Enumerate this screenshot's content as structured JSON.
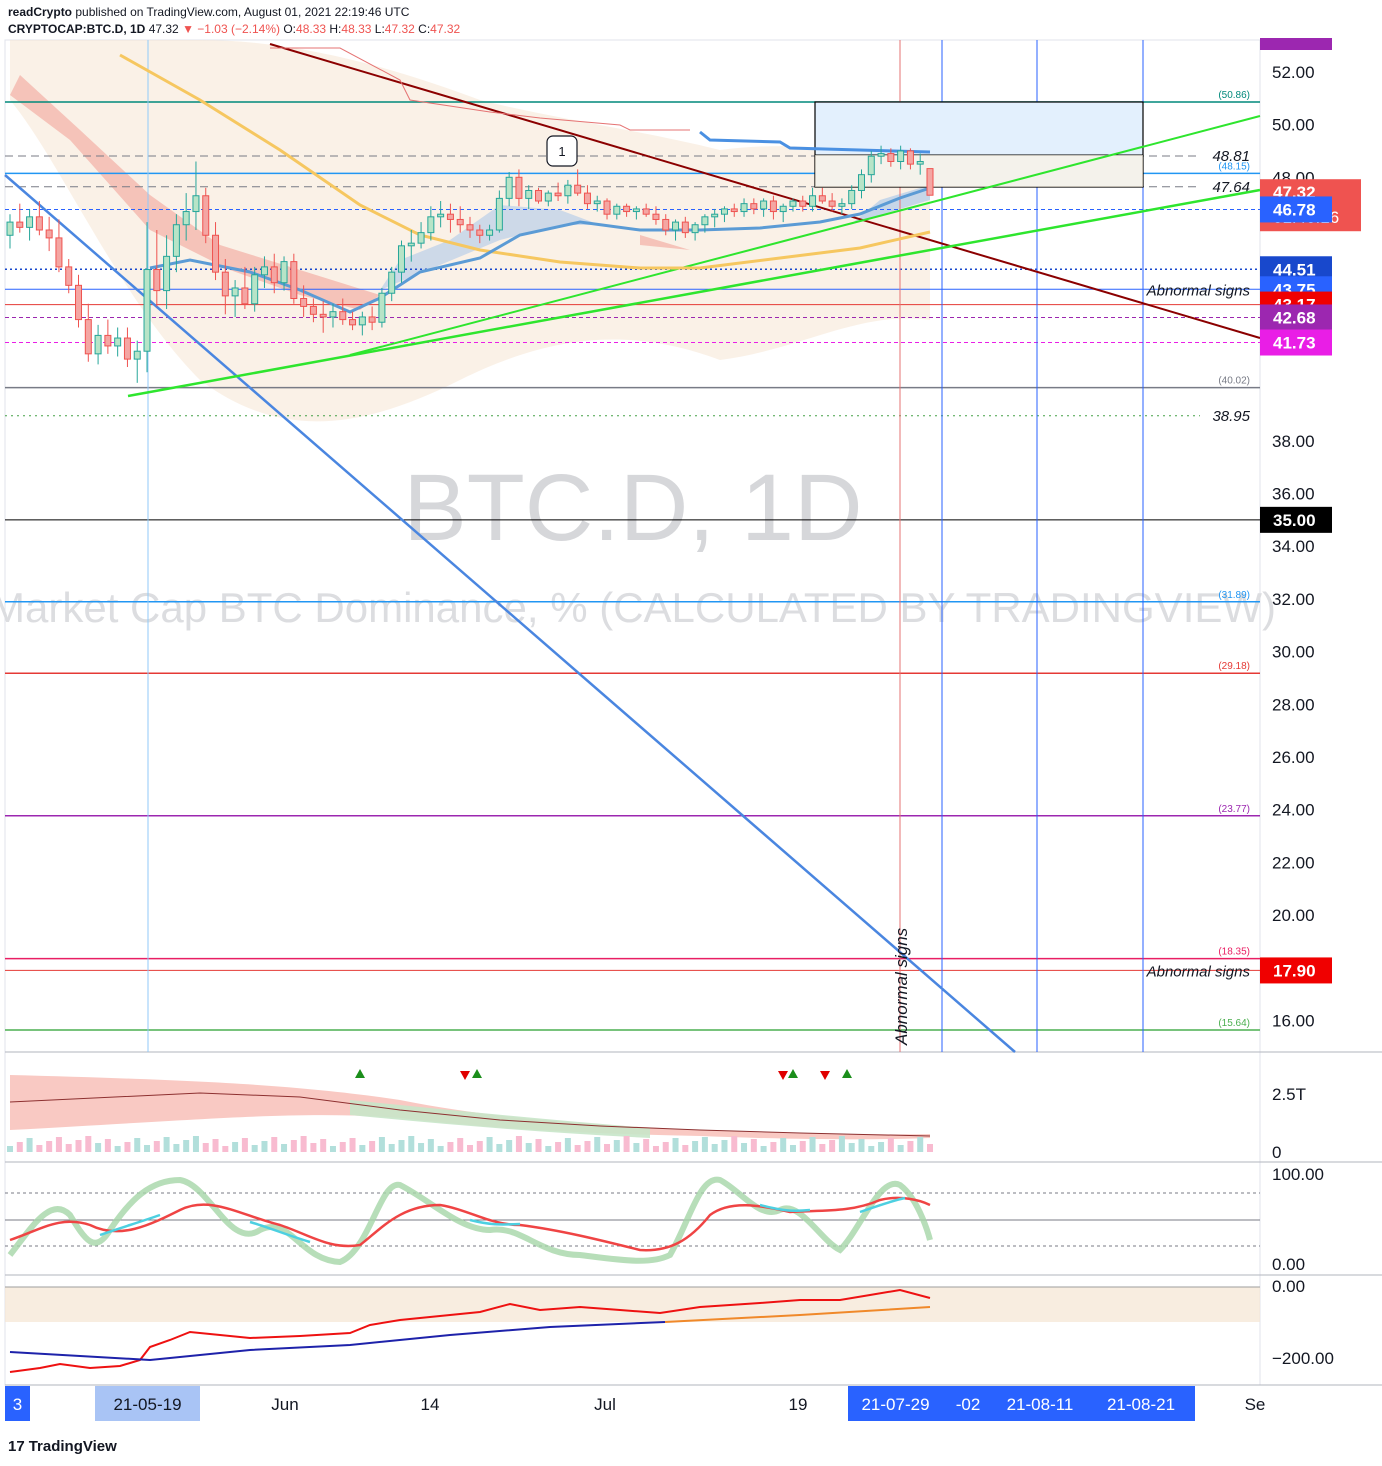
{
  "header": {
    "publisher": "readCrypto",
    "published_text": "published on TradingView.com, August 01, 2021 22:19:46 UTC",
    "symbol": "CRYPTOCAP:BTC.D, 1D",
    "last": "47.32",
    "change": "▼ −1.03 (−2.14%)",
    "o_label": "O:",
    "o": "48.33",
    "h_label": "H:",
    "h": "48.33",
    "l_label": "L:",
    "l": "47.32",
    "c_label": "C:",
    "c": "47.32"
  },
  "watermark": {
    "symbol": "BTC.D, 1D",
    "description": "Market Cap BTC Dominance, % (CALCULATED BY TRADINGVIEW)"
  },
  "chart_data": {
    "type": "candlestick",
    "y_axis": {
      "ticks": [
        "52.00",
        "50.00",
        "48.00",
        "38.00",
        "36.00",
        "34.00",
        "32.00",
        "30.00",
        "28.00",
        "26.00",
        "24.00",
        "22.00",
        "20.00",
        "16.00"
      ],
      "range": [
        15.0,
        53.5
      ]
    },
    "price_badges": [
      {
        "value": "47.32",
        "sub": "01:40:16",
        "color": "#ef5350"
      },
      {
        "value": "46.78",
        "color": "#2962ff"
      },
      {
        "value": "44.51",
        "color": "#1848cc"
      },
      {
        "value": "43.75",
        "color": "#2962ff"
      },
      {
        "value": "43.17",
        "color": "#f00000"
      },
      {
        "value": "42.68",
        "color": "#9c27b0"
      },
      {
        "value": "41.73",
        "color": "#e91ee6"
      },
      {
        "value": "35.00",
        "color": "#000000"
      },
      {
        "value": "17.90",
        "color": "#f00000"
      }
    ],
    "level_labels": [
      {
        "value": 50.86,
        "text": "(50.86)",
        "color": "#00897b"
      },
      {
        "value": 48.15,
        "text": "(48.15)",
        "color": "#2196f3"
      },
      {
        "value": 40.02,
        "text": "(40.02)",
        "color": "#787b86"
      },
      {
        "value": 31.89,
        "text": "(31.89)",
        "color": "#2196f3"
      },
      {
        "value": 29.18,
        "text": "(29.18)",
        "color": "#e53935"
      },
      {
        "value": 23.77,
        "text": "(23.77)",
        "color": "#9c27b0"
      },
      {
        "value": 18.35,
        "text": "(18.35)",
        "color": "#e91e63"
      },
      {
        "value": 15.64,
        "text": "(15.64)",
        "color": "#4caf50"
      }
    ],
    "dashed_labels": [
      {
        "value": 48.81,
        "text": "48.81"
      },
      {
        "value": 47.64,
        "text": "47.64"
      },
      {
        "value": 38.95,
        "text": "38.95"
      }
    ],
    "annotations": [
      {
        "text": "Abnormal signs",
        "value": 43.75
      },
      {
        "text": "Abnormal signs",
        "value": 17.9
      },
      {
        "text": "Abnormal signs",
        "vertical": true
      },
      {
        "text": "1"
      }
    ],
    "candles": [
      [
        45.8,
        46.6,
        45.3,
        46.3
      ],
      [
        46.3,
        47.0,
        45.9,
        46.1
      ],
      [
        46.1,
        46.8,
        45.6,
        46.5
      ],
      [
        46.5,
        47.1,
        45.8,
        46.0
      ],
      [
        46.0,
        46.5,
        45.2,
        45.7
      ],
      [
        45.7,
        46.4,
        44.4,
        44.6
      ],
      [
        44.6,
        44.9,
        43.6,
        43.9
      ],
      [
        43.9,
        44.3,
        42.3,
        42.6
      ],
      [
        42.6,
        43.2,
        41.0,
        41.3
      ],
      [
        41.3,
        42.4,
        40.9,
        42.0
      ],
      [
        42.0,
        42.6,
        41.3,
        41.6
      ],
      [
        41.6,
        42.3,
        41.2,
        41.9
      ],
      [
        41.9,
        42.3,
        40.8,
        41.1
      ],
      [
        41.1,
        41.8,
        40.2,
        41.4
      ],
      [
        41.4,
        46.3,
        40.6,
        44.5
      ],
      [
        44.5,
        46.0,
        43.1,
        43.7
      ],
      [
        43.7,
        45.8,
        43.0,
        45.0
      ],
      [
        45.0,
        46.6,
        44.4,
        46.2
      ],
      [
        46.2,
        47.4,
        45.6,
        46.7
      ],
      [
        46.7,
        48.6,
        46.0,
        47.3
      ],
      [
        47.3,
        47.6,
        45.5,
        45.8
      ],
      [
        45.8,
        46.3,
        44.1,
        44.4
      ],
      [
        44.4,
        44.9,
        42.8,
        43.5
      ],
      [
        43.5,
        44.1,
        42.7,
        43.8
      ],
      [
        43.8,
        44.6,
        43.0,
        43.2
      ],
      [
        43.2,
        44.6,
        42.9,
        44.3
      ],
      [
        44.3,
        45.0,
        43.8,
        44.6
      ],
      [
        44.6,
        45.1,
        43.6,
        44.0
      ],
      [
        44.0,
        45.0,
        43.7,
        44.8
      ],
      [
        44.8,
        45.1,
        43.2,
        43.4
      ],
      [
        43.4,
        43.9,
        42.7,
        43.1
      ],
      [
        43.1,
        43.4,
        42.5,
        42.8
      ],
      [
        42.8,
        43.3,
        42.1,
        42.7
      ],
      [
        42.7,
        43.2,
        42.3,
        42.9
      ],
      [
        42.9,
        43.4,
        42.4,
        42.6
      ],
      [
        42.6,
        42.9,
        42.2,
        42.4
      ],
      [
        42.4,
        42.9,
        42.0,
        42.7
      ],
      [
        42.7,
        43.1,
        42.2,
        42.5
      ],
      [
        42.5,
        43.8,
        42.3,
        43.6
      ],
      [
        43.6,
        44.6,
        43.3,
        44.4
      ],
      [
        44.4,
        45.6,
        44.0,
        45.4
      ],
      [
        45.4,
        46.0,
        44.8,
        45.5
      ],
      [
        45.5,
        46.3,
        45.3,
        45.9
      ],
      [
        45.9,
        46.9,
        45.6,
        46.5
      ],
      [
        46.5,
        47.1,
        46.1,
        46.6
      ],
      [
        46.6,
        47.0,
        45.9,
        46.4
      ],
      [
        46.4,
        46.9,
        45.9,
        46.2
      ],
      [
        46.2,
        46.5,
        45.7,
        46.0
      ],
      [
        46.0,
        46.2,
        45.5,
        45.8
      ],
      [
        45.8,
        46.2,
        45.6,
        46.0
      ],
      [
        46.0,
        47.5,
        45.9,
        47.2
      ],
      [
        47.2,
        48.2,
        46.9,
        48.0
      ],
      [
        48.0,
        48.3,
        46.9,
        47.2
      ],
      [
        47.2,
        47.7,
        46.8,
        47.5
      ],
      [
        47.5,
        47.6,
        47.0,
        47.1
      ],
      [
        47.1,
        47.5,
        46.9,
        47.4
      ],
      [
        47.4,
        47.8,
        47.1,
        47.3
      ],
      [
        47.3,
        47.9,
        47.0,
        47.7
      ],
      [
        47.7,
        48.3,
        47.3,
        47.4
      ],
      [
        47.4,
        47.7,
        46.8,
        47.0
      ],
      [
        47.0,
        47.3,
        46.7,
        47.1
      ],
      [
        47.1,
        47.2,
        46.4,
        46.6
      ],
      [
        46.6,
        47.0,
        46.4,
        46.9
      ],
      [
        46.9,
        47.0,
        46.5,
        46.7
      ],
      [
        46.7,
        46.9,
        46.4,
        46.8
      ],
      [
        46.8,
        47.0,
        46.5,
        46.6
      ],
      [
        46.6,
        46.9,
        46.2,
        46.4
      ],
      [
        46.4,
        46.6,
        45.8,
        46.0
      ],
      [
        46.0,
        46.4,
        45.6,
        46.3
      ],
      [
        46.3,
        46.5,
        45.7,
        45.9
      ],
      [
        45.9,
        46.3,
        45.6,
        46.2
      ],
      [
        46.2,
        46.6,
        45.9,
        46.5
      ],
      [
        46.5,
        46.8,
        46.1,
        46.6
      ],
      [
        46.6,
        46.9,
        46.3,
        46.8
      ],
      [
        46.8,
        47.0,
        46.5,
        46.7
      ],
      [
        46.7,
        47.2,
        46.5,
        47.0
      ],
      [
        47.0,
        47.2,
        46.6,
        46.8
      ],
      [
        46.8,
        47.2,
        46.5,
        47.1
      ],
      [
        47.1,
        47.3,
        46.4,
        46.7
      ],
      [
        46.7,
        47.0,
        46.3,
        46.9
      ],
      [
        46.9,
        47.2,
        46.7,
        47.1
      ],
      [
        47.1,
        47.3,
        46.7,
        46.9
      ],
      [
        46.9,
        47.6,
        46.7,
        47.3
      ],
      [
        47.3,
        47.6,
        47.0,
        47.1
      ],
      [
        47.1,
        47.4,
        46.7,
        46.9
      ],
      [
        46.9,
        47.2,
        46.6,
        47.0
      ],
      [
        47.0,
        47.7,
        46.8,
        47.5
      ],
      [
        47.5,
        48.3,
        47.2,
        48.1
      ],
      [
        48.1,
        49.0,
        47.8,
        48.8
      ],
      [
        48.8,
        49.2,
        48.5,
        48.9
      ],
      [
        48.9,
        49.1,
        48.4,
        48.6
      ],
      [
        48.6,
        49.2,
        48.3,
        49.0
      ],
      [
        49.0,
        49.1,
        48.3,
        48.5
      ],
      [
        48.5,
        48.9,
        48.1,
        48.6
      ],
      [
        48.33,
        48.33,
        47.32,
        47.32
      ]
    ],
    "x_labels": [
      {
        "text": "3",
        "highlight": true
      },
      {
        "text": "21-05-19",
        "highlight": "light"
      },
      {
        "text": "Jun"
      },
      {
        "text": "14"
      },
      {
        "text": "Jul"
      },
      {
        "text": "19"
      },
      {
        "text": "21-07-29",
        "highlight": true
      },
      {
        "text": "-02",
        "highlight": true
      },
      {
        "text": "21-08-11",
        "highlight": true
      },
      {
        "text": "21-08-21",
        "highlight": true
      },
      {
        "text": "Se"
      }
    ],
    "volume_pane": {
      "axis": [
        "2.5T",
        "0"
      ]
    },
    "osc_pane": {
      "axis": [
        "100.00",
        "0.00"
      ]
    },
    "obv_pane": {
      "axis": [
        "0.00",
        "−200.00"
      ]
    }
  },
  "footer": {
    "brand": "TradingView"
  }
}
